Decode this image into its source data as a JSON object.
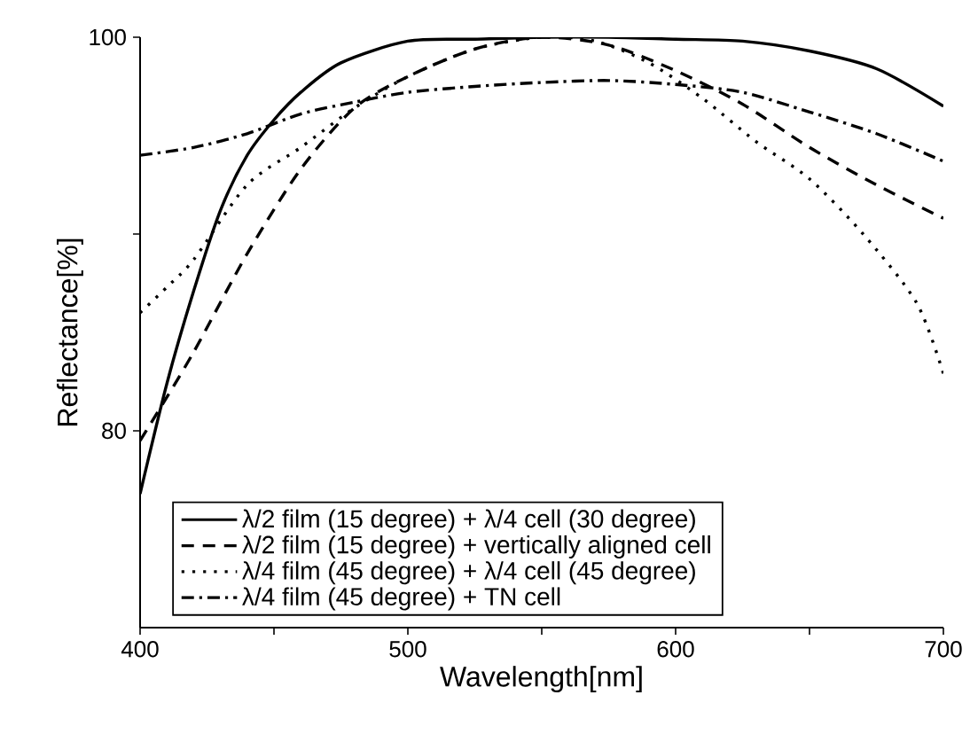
{
  "chart_data": {
    "type": "line",
    "xlabel": "Wavelength[nm]",
    "ylabel": "Reflectance[%]",
    "xlim": [
      400,
      700
    ],
    "ylim": [
      70,
      100
    ],
    "xticks": [
      400,
      {
        "value": 450,
        "label": null
      },
      500,
      {
        "value": 550,
        "label": null
      },
      600,
      {
        "value": 650,
        "label": null
      },
      700
    ],
    "yticks": [
      80,
      {
        "value": 90,
        "label": null
      },
      100
    ],
    "legend": "bottom",
    "grid": false,
    "marker": "none",
    "series": [
      {
        "name": "λ/2 film (15 degree) + λ/4 cell (30 degree)",
        "color": "#000000",
        "line_style": "solid",
        "x": [
          400,
          410,
          420,
          430,
          440,
          450,
          460,
          475,
          500,
          525,
          550,
          575,
          600,
          625,
          650,
          675,
          700
        ],
        "values": [
          76.8,
          82.4,
          87.1,
          91.2,
          94.0,
          95.8,
          97.2,
          98.7,
          99.8,
          99.9,
          100,
          100,
          99.9,
          99.8,
          99.3,
          98.4,
          96.5
        ]
      },
      {
        "name": "λ/2 film (15 degree) + vertically aligned cell",
        "color": "#000000",
        "line_style": "dashed",
        "x": [
          400,
          405,
          420,
          440,
          460,
          480,
          500,
          525,
          550,
          575,
          600,
          625,
          650,
          675,
          700
        ],
        "values": [
          79.5,
          80.6,
          84.0,
          89.0,
          93.3,
          96.4,
          98.0,
          99.4,
          100,
          99.6,
          98.3,
          96.6,
          94.4,
          92.5,
          90.8
        ]
      },
      {
        "name": "λ/4 film (45 degree) + λ/4 cell (45 degree)",
        "color": "#000000",
        "line_style": "dotted",
        "x": [
          400,
          410,
          420,
          440,
          460,
          480,
          500,
          525,
          550,
          570,
          590,
          610,
          630,
          650,
          670,
          690,
          700
        ],
        "values": [
          86.0,
          87.3,
          88.7,
          92.5,
          94.4,
          96.4,
          98.0,
          99.4,
          100,
          99.8,
          98.7,
          96.9,
          94.7,
          92.8,
          90.0,
          86.5,
          82.9
        ]
      },
      {
        "name": "λ/4 film (45 degree) + TN cell",
        "color": "#000000",
        "line_style": "dashdot",
        "x": [
          400,
          420,
          440,
          460,
          480,
          500,
          525,
          550,
          575,
          600,
          625,
          650,
          675,
          700
        ],
        "values": [
          94.0,
          94.4,
          95.1,
          96.1,
          96.7,
          97.2,
          97.5,
          97.7,
          97.8,
          97.6,
          97.2,
          96.2,
          95.1,
          93.7
        ]
      }
    ]
  }
}
